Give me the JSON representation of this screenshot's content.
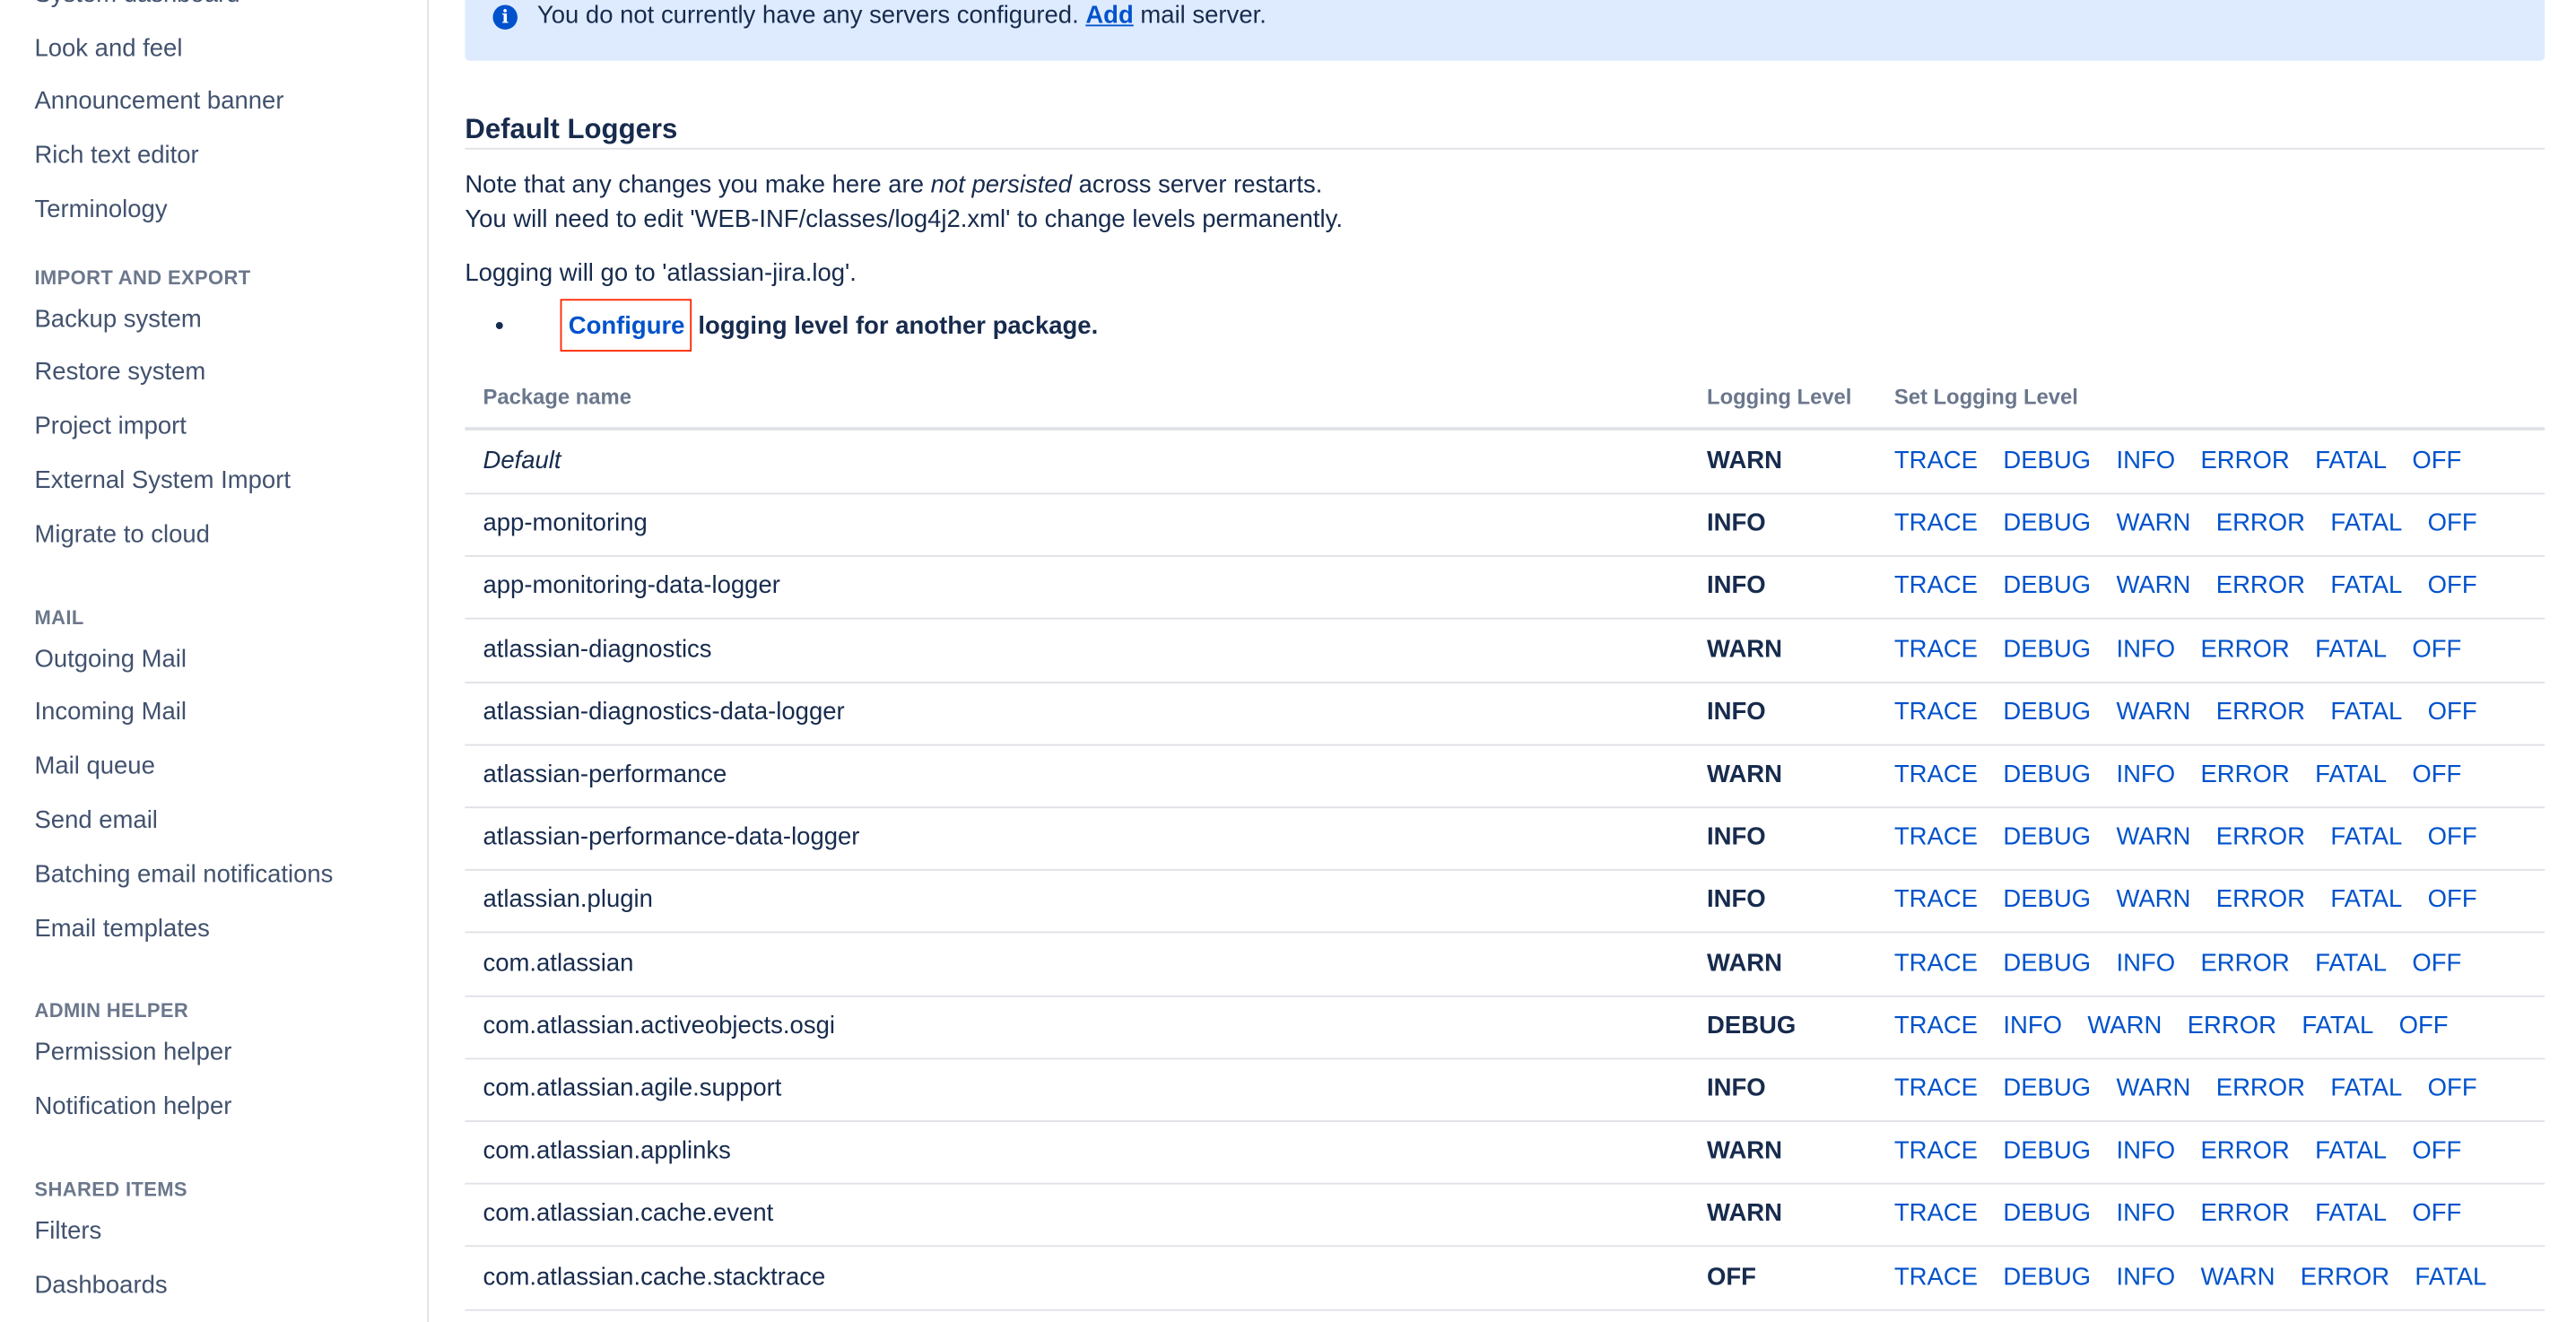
{
  "sidebar": {
    "items_top": [
      "System dashboard",
      "Look and feel",
      "Announcement banner",
      "Rich text editor",
      "Terminology"
    ],
    "sections": [
      {
        "title": "IMPORT AND EXPORT",
        "items": [
          "Backup system",
          "Restore system",
          "Project import",
          "External System Import",
          "Migrate to cloud"
        ]
      },
      {
        "title": "MAIL",
        "items": [
          "Outgoing Mail",
          "Incoming Mail",
          "Mail queue",
          "Send email",
          "Batching email notifications",
          "Email templates"
        ]
      },
      {
        "title": "ADMIN HELPER",
        "items": [
          "Permission helper",
          "Notification helper"
        ]
      },
      {
        "title": "SHARED ITEMS",
        "items": [
          "Filters",
          "Dashboards"
        ]
      }
    ]
  },
  "banner": {
    "icon": "info-icon",
    "text_before": "You do not currently have any servers configured. ",
    "link": "Add",
    "text_after": " mail server."
  },
  "heading": "Default Loggers",
  "note": {
    "line1_a": "Note that any changes you make here are ",
    "line1_em": "not persisted",
    "line1_b": " across server restarts.",
    "line2": "You will need to edit 'WEB-INF/classes/log4j2.xml' to change levels permanently."
  },
  "logging_target": "Logging will go to 'atlassian-jira.log'.",
  "configure": {
    "link": "Configure",
    "text": " logging level for another package."
  },
  "table": {
    "headers": [
      "Package name",
      "Logging Level",
      "Set Logging Level"
    ],
    "rows": [
      {
        "package": "Default",
        "level": "WARN",
        "set": [
          "TRACE",
          "DEBUG",
          "INFO",
          "ERROR",
          "FATAL",
          "OFF"
        ],
        "italic": true
      },
      {
        "package": "app-monitoring",
        "level": "INFO",
        "set": [
          "TRACE",
          "DEBUG",
          "WARN",
          "ERROR",
          "FATAL",
          "OFF"
        ]
      },
      {
        "package": "app-monitoring-data-logger",
        "level": "INFO",
        "set": [
          "TRACE",
          "DEBUG",
          "WARN",
          "ERROR",
          "FATAL",
          "OFF"
        ]
      },
      {
        "package": "atlassian-diagnostics",
        "level": "WARN",
        "set": [
          "TRACE",
          "DEBUG",
          "INFO",
          "ERROR",
          "FATAL",
          "OFF"
        ]
      },
      {
        "package": "atlassian-diagnostics-data-logger",
        "level": "INFO",
        "set": [
          "TRACE",
          "DEBUG",
          "WARN",
          "ERROR",
          "FATAL",
          "OFF"
        ]
      },
      {
        "package": "atlassian-performance",
        "level": "WARN",
        "set": [
          "TRACE",
          "DEBUG",
          "INFO",
          "ERROR",
          "FATAL",
          "OFF"
        ]
      },
      {
        "package": "atlassian-performance-data-logger",
        "level": "INFO",
        "set": [
          "TRACE",
          "DEBUG",
          "WARN",
          "ERROR",
          "FATAL",
          "OFF"
        ]
      },
      {
        "package": "atlassian.plugin",
        "level": "INFO",
        "set": [
          "TRACE",
          "DEBUG",
          "WARN",
          "ERROR",
          "FATAL",
          "OFF"
        ]
      },
      {
        "package": "com.atlassian",
        "level": "WARN",
        "set": [
          "TRACE",
          "DEBUG",
          "INFO",
          "ERROR",
          "FATAL",
          "OFF"
        ]
      },
      {
        "package": "com.atlassian.activeobjects.osgi",
        "level": "DEBUG",
        "set": [
          "TRACE",
          "INFO",
          "WARN",
          "ERROR",
          "FATAL",
          "OFF"
        ]
      },
      {
        "package": "com.atlassian.agile.support",
        "level": "INFO",
        "set": [
          "TRACE",
          "DEBUG",
          "WARN",
          "ERROR",
          "FATAL",
          "OFF"
        ]
      },
      {
        "package": "com.atlassian.applinks",
        "level": "WARN",
        "set": [
          "TRACE",
          "DEBUG",
          "INFO",
          "ERROR",
          "FATAL",
          "OFF"
        ]
      },
      {
        "package": "com.atlassian.cache.event",
        "level": "WARN",
        "set": [
          "TRACE",
          "DEBUG",
          "INFO",
          "ERROR",
          "FATAL",
          "OFF"
        ]
      },
      {
        "package": "com.atlassian.cache.stacktrace",
        "level": "OFF",
        "set": [
          "TRACE",
          "DEBUG",
          "INFO",
          "WARN",
          "ERROR",
          "FATAL"
        ]
      }
    ]
  },
  "colors": {
    "link": "#0052cc",
    "banner_bg": "#deebff",
    "text": "#172b4d",
    "highlight_box": "#ff2600"
  }
}
